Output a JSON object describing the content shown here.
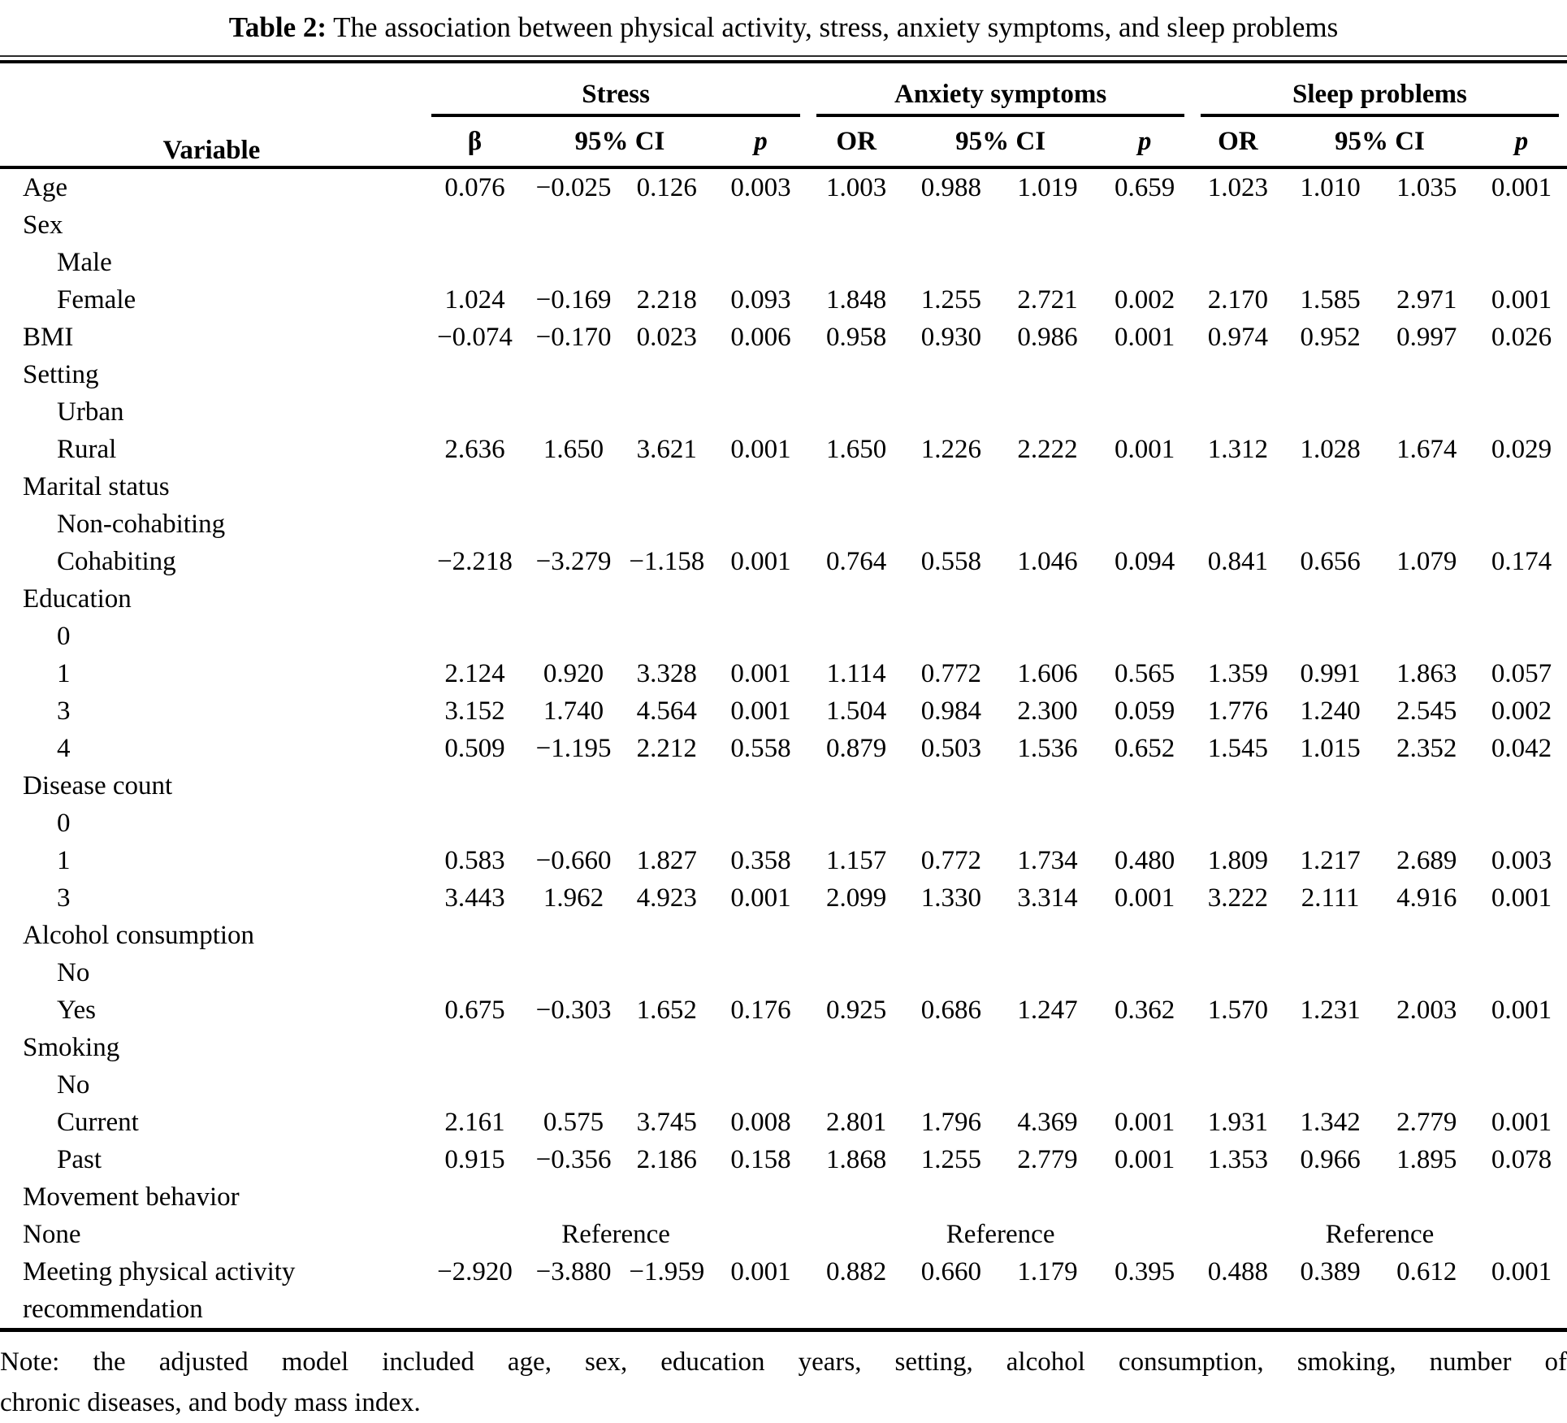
{
  "caption": {
    "label": "Table 2:",
    "text": " The association between physical activity, stress, anxiety symptoms, and sleep problems"
  },
  "header": {
    "variable": "Variable",
    "groups": [
      {
        "label": "Stress",
        "cols": [
          "β",
          "95% CI",
          "p"
        ]
      },
      {
        "label": "Anxiety symptoms",
        "cols": [
          "OR",
          "95% CI",
          "p"
        ]
      },
      {
        "label": "Sleep problems",
        "cols": [
          "OR",
          "95% CI",
          "p"
        ]
      }
    ]
  },
  "reference_label": "Reference",
  "rows": [
    {
      "label": "Age",
      "indent": 0,
      "cells": [
        "0.076",
        "−0.025",
        "0.126",
        "0.003",
        "1.003",
        "0.988",
        "1.019",
        "0.659",
        "1.023",
        "1.010",
        "1.035",
        "0.001"
      ]
    },
    {
      "label": "Sex",
      "indent": 0
    },
    {
      "label": "Male",
      "indent": 1
    },
    {
      "label": "Female",
      "indent": 1,
      "cells": [
        "1.024",
        "−0.169",
        "2.218",
        "0.093",
        "1.848",
        "1.255",
        "2.721",
        "0.002",
        "2.170",
        "1.585",
        "2.971",
        "0.001"
      ]
    },
    {
      "label": "BMI",
      "indent": 0,
      "cells": [
        "−0.074",
        "−0.170",
        "0.023",
        "0.006",
        "0.958",
        "0.930",
        "0.986",
        "0.001",
        "0.974",
        "0.952",
        "0.997",
        "0.026"
      ]
    },
    {
      "label": "Setting",
      "indent": 0
    },
    {
      "label": "Urban",
      "indent": 1
    },
    {
      "label": "Rural",
      "indent": 1,
      "cells": [
        "2.636",
        "1.650",
        "3.621",
        "0.001",
        "1.650",
        "1.226",
        "2.222",
        "0.001",
        "1.312",
        "1.028",
        "1.674",
        "0.029"
      ]
    },
    {
      "label": "Marital status",
      "indent": 0
    },
    {
      "label": "Non-cohabiting",
      "indent": 1
    },
    {
      "label": "Cohabiting",
      "indent": 1,
      "cells": [
        "−2.218",
        "−3.279",
        "−1.158",
        "0.001",
        "0.764",
        "0.558",
        "1.046",
        "0.094",
        "0.841",
        "0.656",
        "1.079",
        "0.174"
      ]
    },
    {
      "label": "Education",
      "indent": 0
    },
    {
      "label": "0",
      "indent": 1
    },
    {
      "label": "1",
      "indent": 1,
      "cells": [
        "2.124",
        "0.920",
        "3.328",
        "0.001",
        "1.114",
        "0.772",
        "1.606",
        "0.565",
        "1.359",
        "0.991",
        "1.863",
        "0.057"
      ]
    },
    {
      "label": "3",
      "indent": 1,
      "cells": [
        "3.152",
        "1.740",
        "4.564",
        "0.001",
        "1.504",
        "0.984",
        "2.300",
        "0.059",
        "1.776",
        "1.240",
        "2.545",
        "0.002"
      ]
    },
    {
      "label": "4",
      "indent": 1,
      "cells": [
        "0.509",
        "−1.195",
        "2.212",
        "0.558",
        "0.879",
        "0.503",
        "1.536",
        "0.652",
        "1.545",
        "1.015",
        "2.352",
        "0.042"
      ]
    },
    {
      "label": "Disease count",
      "indent": 0
    },
    {
      "label": "0",
      "indent": 1
    },
    {
      "label": "1",
      "indent": 1,
      "cells": [
        "0.583",
        "−0.660",
        "1.827",
        "0.358",
        "1.157",
        "0.772",
        "1.734",
        "0.480",
        "1.809",
        "1.217",
        "2.689",
        "0.003"
      ]
    },
    {
      "label": "3",
      "indent": 1,
      "cells": [
        "3.443",
        "1.962",
        "4.923",
        "0.001",
        "2.099",
        "1.330",
        "3.314",
        "0.001",
        "3.222",
        "2.111",
        "4.916",
        "0.001"
      ]
    },
    {
      "label": "Alcohol consumption",
      "indent": 0
    },
    {
      "label": "No",
      "indent": 1
    },
    {
      "label": "Yes",
      "indent": 1,
      "cells": [
        "0.675",
        "−0.303",
        "1.652",
        "0.176",
        "0.925",
        "0.686",
        "1.247",
        "0.362",
        "1.570",
        "1.231",
        "2.003",
        "0.001"
      ]
    },
    {
      "label": "Smoking",
      "indent": 0
    },
    {
      "label": "No",
      "indent": 1
    },
    {
      "label": "Current",
      "indent": 1,
      "cells": [
        "2.161",
        "0.575",
        "3.745",
        "0.008",
        "2.801",
        "1.796",
        "4.369",
        "0.001",
        "1.931",
        "1.342",
        "2.779",
        "0.001"
      ]
    },
    {
      "label": "Past",
      "indent": 1,
      "cells": [
        "0.915",
        "−0.356",
        "2.186",
        "0.158",
        "1.868",
        "1.255",
        "2.779",
        "0.001",
        "1.353",
        "0.966",
        "1.895",
        "0.078"
      ]
    },
    {
      "label": "Movement behavior",
      "indent": 0
    },
    {
      "label": "None",
      "indent": 0,
      "type": "reference"
    },
    {
      "label": "Meeting physical activity recommendation",
      "indent": 0,
      "cells": [
        "−2.920",
        "−3.880",
        "−1.959",
        "0.001",
        "0.882",
        "0.660",
        "1.179",
        "0.395",
        "0.488",
        "0.389",
        "0.612",
        "0.001"
      ]
    }
  ],
  "note": {
    "line1": "Note: the adjusted model included age, sex, education years, setting, alcohol consumption, smoking, number of",
    "line2": "chronic diseases, and body mass index."
  }
}
